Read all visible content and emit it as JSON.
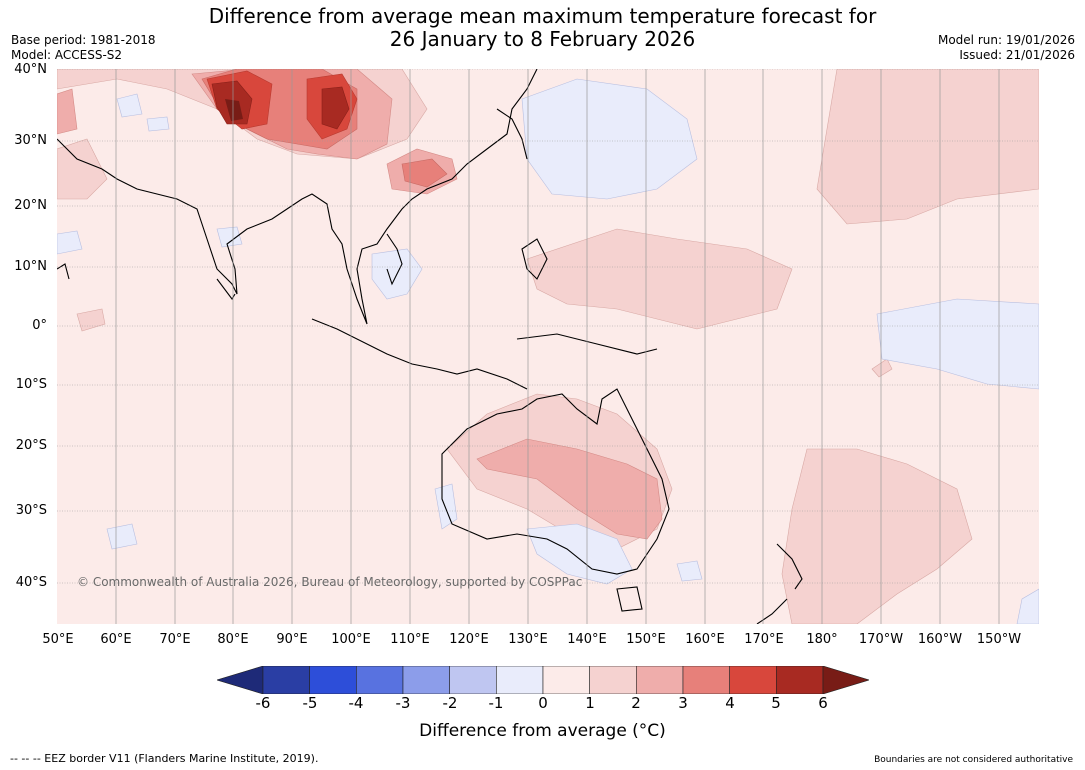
{
  "title": {
    "line1": "Difference from average mean maximum temperature forecast for",
    "line2": "26 January to 8 February 2026"
  },
  "meta_left": {
    "base_period": "Base period: 1981-2018",
    "model": "Model: ACCESS-S2"
  },
  "meta_right": {
    "model_run": "Model run: 19/01/2026",
    "issued": "Issued: 21/01/2026"
  },
  "map": {
    "lat_labels": [
      "40°N",
      "30°N",
      "20°N",
      "10°N",
      "0°",
      "10°S",
      "20°S",
      "30°S",
      "40°S"
    ],
    "lon_labels": [
      "50°E",
      "60°E",
      "70°E",
      "80°E",
      "90°E",
      "100°E",
      "110°E",
      "120°E",
      "130°E",
      "140°E",
      "150°E",
      "160°E",
      "170°E",
      "180°",
      "170°W",
      "160°W",
      "150°W"
    ],
    "copyright": "© Commonwealth of Australia 2026, Bureau of Meteorology, supported by COSPPac",
    "anomaly_regions": [
      {
        "name": "Tibetan Plateau / Himalaya",
        "anomaly": "4 to 6+"
      },
      {
        "name": "Southern China",
        "anomaly": "2 to 4"
      },
      {
        "name": "Central Australia",
        "anomaly": "1 to 3"
      },
      {
        "name": "Western Pacific",
        "anomaly": "1 to 2"
      },
      {
        "name": "Central Pacific (east of date line)",
        "anomaly": "-1 to 0"
      },
      {
        "name": "Philippine Sea",
        "anomaly": "-1 to 0"
      }
    ]
  },
  "legend": {
    "ticks": [
      "-6",
      "-5",
      "-4",
      "-3",
      "-2",
      "-1",
      "0",
      "1",
      "2",
      "3",
      "4",
      "5",
      "6"
    ],
    "colors": [
      "#2a3ea4",
      "#2d4ed9",
      "#5872e0",
      "#8c9dea",
      "#bfc6f1",
      "#e9ecfb",
      "#fcebe9",
      "#f5d2d0",
      "#efadab",
      "#e7807a",
      "#d8473c",
      "#a82a22"
    ],
    "under_color": "#1e2a78",
    "over_color": "#781c16",
    "label": "Difference from average ($^\\circ$C)",
    "label_display": "Difference from average (°C)"
  },
  "footer": {
    "eez_note": "--  --  -- EEZ border V11 (Flanders Marine Institute, 2019).",
    "boundaries_note": "Boundaries are not considered authoritative"
  }
}
